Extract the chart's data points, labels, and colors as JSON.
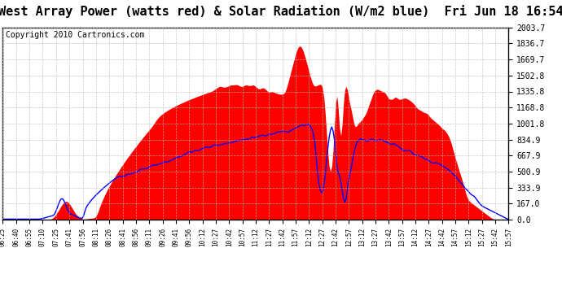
{
  "title": "West Array Power (watts red) & Solar Radiation (W/m2 blue)  Fri Jun 18 16:54",
  "copyright": "Copyright 2010 Cartronics.com",
  "y_ticks": [
    0.0,
    167.0,
    333.9,
    500.9,
    667.9,
    834.9,
    1001.8,
    1168.8,
    1335.8,
    1502.8,
    1669.7,
    1836.7,
    2003.7
  ],
  "x_tick_labels": [
    "06:25",
    "06:40",
    "06:55",
    "07:10",
    "07:25",
    "07:41",
    "07:56",
    "08:11",
    "08:26",
    "08:41",
    "08:56",
    "09:11",
    "09:26",
    "09:41",
    "09:56",
    "10:12",
    "10:27",
    "10:42",
    "10:57",
    "11:12",
    "11:27",
    "11:42",
    "11:57",
    "12:12",
    "12:27",
    "12:42",
    "12:57",
    "13:12",
    "13:27",
    "13:42",
    "13:57",
    "14:12",
    "14:27",
    "14:42",
    "14:57",
    "15:12",
    "15:27",
    "15:42",
    "15:57"
  ],
  "ymax": 2003.7,
  "ymin": 0.0,
  "background_color": "#ffffff",
  "plot_bg_color": "#ffffff",
  "grid_color": "#bbbbbb",
  "red_color": "#ff0000",
  "blue_color": "#0000ff",
  "title_fontsize": 11,
  "copyright_fontsize": 7
}
